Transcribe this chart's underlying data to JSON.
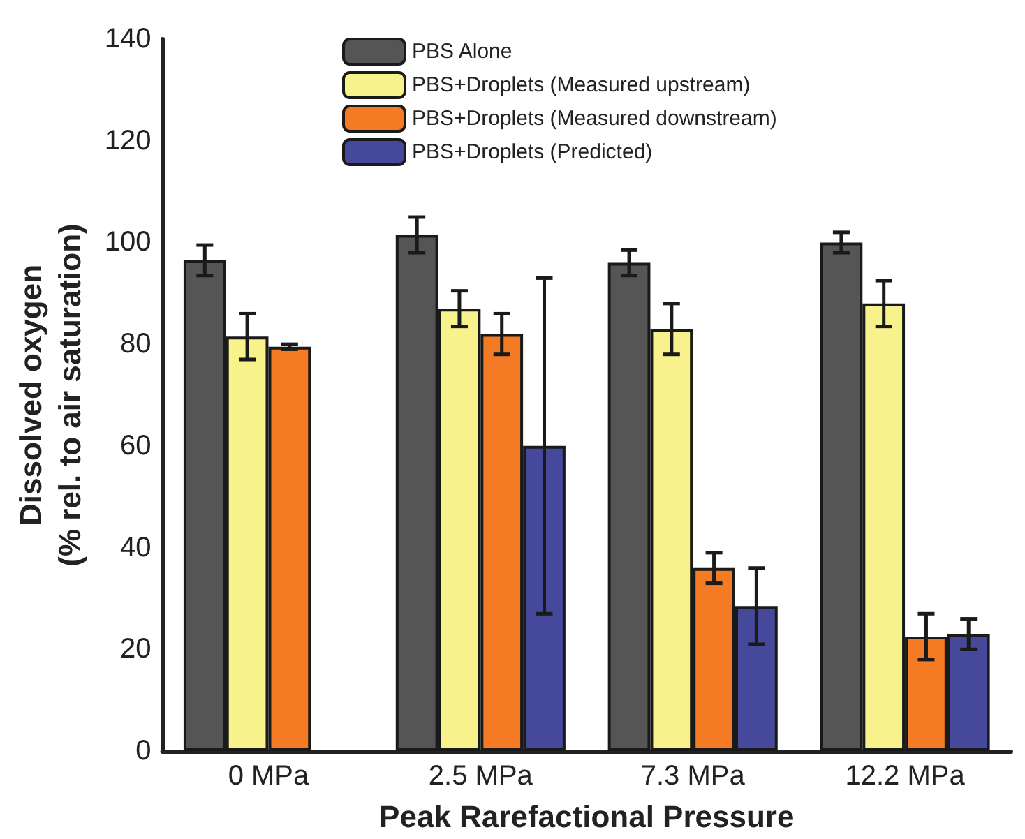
{
  "chart_data": {
    "type": "bar",
    "xlabel": "Peak Rarefactional Pressure",
    "ylabel": "Dissolved oxygen\n(% rel. to air saturation)",
    "categories": [
      "0 MPa",
      "2.5 MPa",
      "7.3 MPa",
      "12.2 MPa"
    ],
    "series": [
      {
        "name": "PBS Alone",
        "color": "#555555",
        "values": [
          96.5,
          101.5,
          96,
          100
        ],
        "errors": [
          3,
          3.5,
          2.5,
          2
        ]
      },
      {
        "name": "PBS+Droplets (Measured upstream)",
        "color": "#f8f28c",
        "values": [
          81.5,
          87,
          83,
          88
        ],
        "errors": [
          4.5,
          3.5,
          5,
          4.5
        ]
      },
      {
        "name": "PBS+Droplets (Measured downstream)",
        "color": "#f47a23",
        "values": [
          79.5,
          82,
          36,
          22.5
        ],
        "errors": [
          0.5,
          4,
          3,
          4.5
        ]
      },
      {
        "name": "PBS+Droplets (Predicted)",
        "color": "#46499b",
        "values": [
          null,
          60,
          28.5,
          23
        ],
        "errors": [
          null,
          33,
          7.5,
          3
        ]
      }
    ],
    "ylim": [
      0,
      140
    ],
    "yticks": [
      0,
      20,
      40,
      60,
      80,
      100,
      120,
      140
    ],
    "legend": "top",
    "grid": false
  }
}
